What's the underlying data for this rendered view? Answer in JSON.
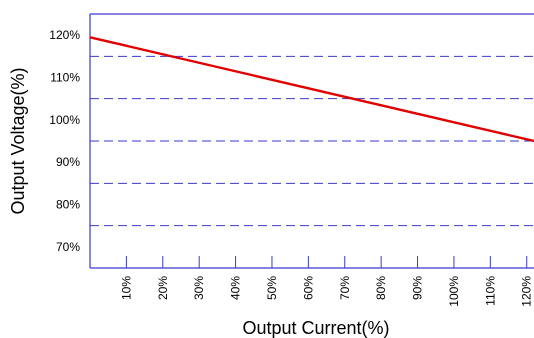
{
  "chart_data": {
    "type": "line",
    "title": "",
    "xlabel": "Output  Current(%)",
    "ylabel": "Output Voltage(%)",
    "x_ticks": [
      "10%",
      "20%",
      "30%",
      "40%",
      "50%",
      "60%",
      "70%",
      "80%",
      "90%",
      "100%",
      "110%",
      "120%"
    ],
    "y_ticks": [
      "70%",
      "80%",
      "90%",
      "100%",
      "110%",
      "120%"
    ],
    "xlim": [
      0,
      122
    ],
    "ylim": [
      65,
      125
    ],
    "grid": {
      "horizontal_dashed_at": [
        75,
        85,
        95,
        105,
        115
      ],
      "vertical": false
    },
    "series": [
      {
        "x": [
          0,
          122
        ],
        "y": [
          119.5,
          95
        ],
        "color": "#e00000"
      }
    ],
    "colors": {
      "frame": "#3a3acd",
      "gridline": "#3a3acd",
      "series": "#e00000"
    }
  }
}
